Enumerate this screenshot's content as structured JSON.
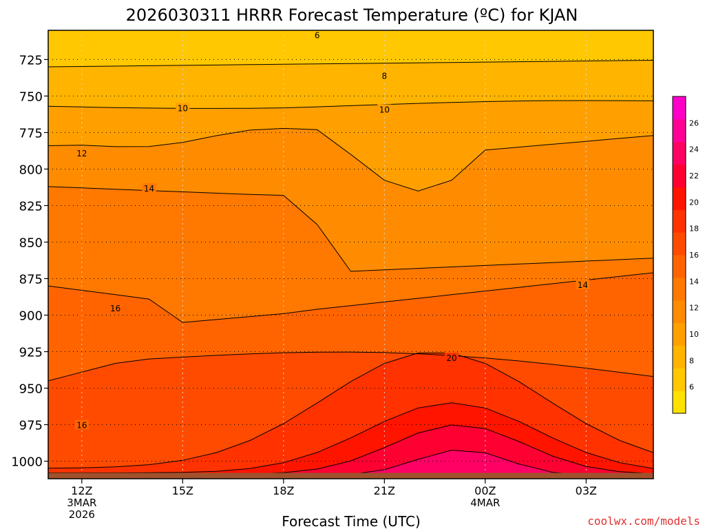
{
  "chart_data": {
    "type": "contour",
    "title": "2026030311 HRRR Forecast Temperature (ºC) for KJAN",
    "xlabel": "Forecast Time (UTC)",
    "ylabel": "",
    "x_ticks": [
      {
        "hour": 12,
        "lines": [
          "12Z",
          "3MAR",
          "2026"
        ]
      },
      {
        "hour": 15,
        "lines": [
          "15Z"
        ]
      },
      {
        "hour": 18,
        "lines": [
          "18Z"
        ]
      },
      {
        "hour": 21,
        "lines": [
          "21Z"
        ]
      },
      {
        "hour": 24,
        "lines": [
          "00Z",
          "4MAR"
        ]
      },
      {
        "hour": 27,
        "lines": [
          "03Z"
        ]
      }
    ],
    "xlim": [
      11,
      29
    ],
    "y_ticks": [
      725,
      750,
      775,
      800,
      825,
      850,
      875,
      900,
      925,
      950,
      975,
      1000
    ],
    "ylim": [
      705,
      1012
    ],
    "ground_pressure": 1008,
    "grid": true,
    "colorbar": {
      "levels": [
        6,
        8,
        10,
        12,
        14,
        16,
        18,
        20,
        22,
        24,
        26
      ],
      "min": 4,
      "max": 28,
      "colors": [
        "#ffe100",
        "#ffc800",
        "#ffb400",
        "#ffa000",
        "#ff8c00",
        "#ff7800",
        "#ff6400",
        "#ff4b00",
        "#ff3200",
        "#ff1400",
        "#ff0032",
        "#ff0064",
        "#ff0096",
        "#ff00c8"
      ],
      "position": "right"
    },
    "contour_labels": [
      {
        "text": "6",
        "hour": 19.0,
        "p": 708
      },
      {
        "text": "8",
        "hour": 21.0,
        "p": 736
      },
      {
        "text": "10",
        "hour": 15.0,
        "p": 758
      },
      {
        "text": "10",
        "hour": 21.0,
        "p": 759
      },
      {
        "text": "12",
        "hour": 12.0,
        "p": 789
      },
      {
        "text": "14",
        "hour": 14.0,
        "p": 813
      },
      {
        "text": "14",
        "hour": 26.9,
        "p": 879
      },
      {
        "text": "16",
        "hour": 13.0,
        "p": 895
      },
      {
        "text": "20",
        "hour": 23.0,
        "p": 929
      },
      {
        "text": "16",
        "hour": 12.0,
        "p": 975
      }
    ],
    "watermark": "coolwx.com/models"
  }
}
